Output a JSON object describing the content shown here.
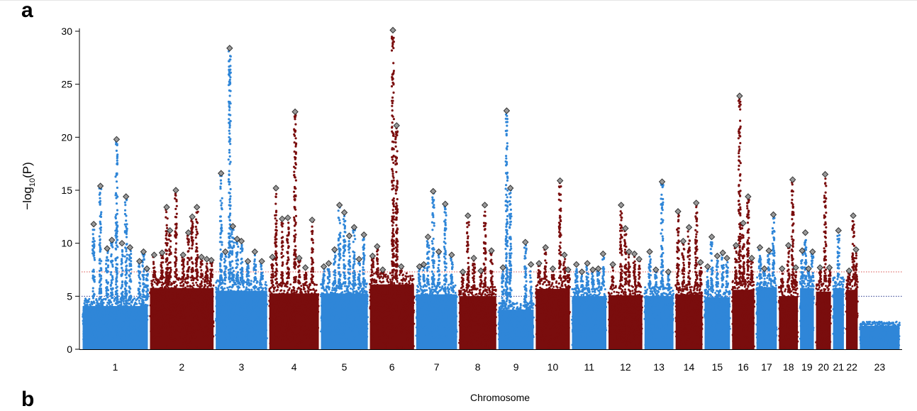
{
  "panels": {
    "a": "a",
    "b": "b"
  },
  "chart_data": {
    "type": "scatter",
    "title": "",
    "xlabel": "Chromosome",
    "ylabel_prefix": "−log",
    "ylabel_sub": "10",
    "ylabel_suffix": "(P)",
    "ylim": [
      0,
      30
    ],
    "yticks": [
      0,
      5,
      10,
      15,
      20,
      25,
      30
    ],
    "thresholds": [
      {
        "value": 7.3,
        "color": "#d9534f",
        "style": "dotted"
      },
      {
        "value": 5.0,
        "color": "#2b3a8f",
        "style": "dotted"
      }
    ],
    "colors": {
      "odd": "#2f86d8",
      "even": "#7a0d0d",
      "lead_marker": "#9a9a9a"
    },
    "chromosomes": [
      {
        "label": "1",
        "length": 249,
        "color": "#2f86d8",
        "base": 4.8,
        "peaks": [
          [
            0.18,
            11.8
          ],
          [
            0.28,
            15.4
          ],
          [
            0.38,
            9.5
          ],
          [
            0.45,
            10.3
          ],
          [
            0.52,
            19.8
          ],
          [
            0.6,
            10
          ],
          [
            0.66,
            14.4
          ],
          [
            0.72,
            9.6
          ],
          [
            0.86,
            8.3
          ],
          [
            0.92,
            9.2
          ],
          [
            0.97,
            7.6
          ]
        ]
      },
      {
        "label": "2",
        "length": 243,
        "color": "#7a0d0d",
        "base": 6.8,
        "peaks": [
          [
            0.08,
            8.9
          ],
          [
            0.2,
            9.1
          ],
          [
            0.27,
            13.4
          ],
          [
            0.32,
            11.2
          ],
          [
            0.41,
            15.0
          ],
          [
            0.52,
            8.9
          ],
          [
            0.6,
            11.0
          ],
          [
            0.66,
            12.5
          ],
          [
            0.73,
            13.4
          ],
          [
            0.8,
            8.7
          ],
          [
            0.88,
            8.5
          ],
          [
            0.95,
            8.4
          ]
        ]
      },
      {
        "label": "3",
        "length": 198,
        "color": "#2f86d8",
        "base": 6.5,
        "peaks": [
          [
            0.12,
            16.6
          ],
          [
            0.2,
            9.2
          ],
          [
            0.28,
            28.4
          ],
          [
            0.34,
            11.6
          ],
          [
            0.42,
            10.4
          ],
          [
            0.5,
            10.2
          ],
          [
            0.62,
            8.3
          ],
          [
            0.75,
            9.2
          ],
          [
            0.88,
            8.3
          ]
        ]
      },
      {
        "label": "4",
        "length": 191,
        "color": "#7a0d0d",
        "base": 6.2,
        "peaks": [
          [
            0.08,
            8.7
          ],
          [
            0.15,
            15.2
          ],
          [
            0.27,
            12.3
          ],
          [
            0.38,
            12.4
          ],
          [
            0.52,
            22.4
          ],
          [
            0.6,
            8.6
          ],
          [
            0.72,
            7.7
          ],
          [
            0.85,
            12.2
          ]
        ]
      },
      {
        "label": "5",
        "length": 181,
        "color": "#2f86d8",
        "base": 6.2,
        "peaks": [
          [
            0.08,
            7.8
          ],
          [
            0.18,
            8.1
          ],
          [
            0.3,
            9.4
          ],
          [
            0.4,
            13.6
          ],
          [
            0.5,
            12.9
          ],
          [
            0.6,
            10.7
          ],
          [
            0.7,
            11.5
          ],
          [
            0.8,
            8.5
          ],
          [
            0.9,
            10.8
          ]
        ]
      },
      {
        "label": "6",
        "length": 171,
        "color": "#7a0d0d",
        "base": 7.2,
        "peaks": [
          [
            0.08,
            8.8
          ],
          [
            0.18,
            9.7
          ],
          [
            0.3,
            7.5
          ],
          [
            0.52,
            30.1
          ],
          [
            0.6,
            21.1
          ],
          [
            0.7,
            7.8
          ]
        ]
      },
      {
        "label": "7",
        "length": 159,
        "color": "#2f86d8",
        "base": 6.1,
        "peaks": [
          [
            0.1,
            7.8
          ],
          [
            0.2,
            8.0
          ],
          [
            0.3,
            10.6
          ],
          [
            0.42,
            14.9
          ],
          [
            0.55,
            9.2
          ],
          [
            0.7,
            13.7
          ],
          [
            0.85,
            8.9
          ]
        ]
      },
      {
        "label": "8",
        "length": 145,
        "color": "#7a0d0d",
        "base": 5.9,
        "peaks": [
          [
            0.12,
            7.3
          ],
          [
            0.25,
            12.6
          ],
          [
            0.4,
            8.6
          ],
          [
            0.58,
            7.4
          ],
          [
            0.68,
            13.6
          ],
          [
            0.85,
            9.3
          ]
        ]
      },
      {
        "label": "9",
        "length": 138,
        "color": "#2f86d8",
        "base": 4.4,
        "peaks": [
          [
            0.15,
            7.7
          ],
          [
            0.25,
            22.5
          ],
          [
            0.35,
            15.2
          ],
          [
            0.75,
            10.1
          ],
          [
            0.9,
            8.0
          ]
        ]
      },
      {
        "label": "10",
        "length": 134,
        "color": "#7a0d0d",
        "base": 6.7,
        "peaks": [
          [
            0.12,
            8.1
          ],
          [
            0.3,
            9.6
          ],
          [
            0.5,
            7.6
          ],
          [
            0.7,
            15.9
          ],
          [
            0.82,
            8.9
          ],
          [
            0.92,
            7.5
          ]
        ]
      },
      {
        "label": "11",
        "length": 135,
        "color": "#2f86d8",
        "base": 5.9,
        "peaks": [
          [
            0.15,
            8.0
          ],
          [
            0.3,
            7.3
          ],
          [
            0.45,
            8.1
          ],
          [
            0.6,
            7.5
          ],
          [
            0.75,
            7.6
          ],
          [
            0.88,
            9.0
          ]
        ]
      },
      {
        "label": "12",
        "length": 133,
        "color": "#7a0d0d",
        "base": 6.0,
        "peaks": [
          [
            0.15,
            8.0
          ],
          [
            0.38,
            13.6
          ],
          [
            0.5,
            11.4
          ],
          [
            0.6,
            9.2
          ],
          [
            0.75,
            9.0
          ],
          [
            0.88,
            8.5
          ]
        ]
      },
      {
        "label": "13",
        "length": 115,
        "color": "#2f86d8",
        "base": 5.9,
        "peaks": [
          [
            0.2,
            9.2
          ],
          [
            0.4,
            7.5
          ],
          [
            0.6,
            15.8
          ],
          [
            0.8,
            7.3
          ]
        ]
      },
      {
        "label": "14",
        "length": 107,
        "color": "#7a0d0d",
        "base": 6.1,
        "peaks": [
          [
            0.12,
            13.0
          ],
          [
            0.3,
            10.2
          ],
          [
            0.5,
            11.5
          ],
          [
            0.75,
            13.8
          ],
          [
            0.9,
            8.2
          ]
        ]
      },
      {
        "label": "15",
        "length": 102,
        "color": "#2f86d8",
        "base": 5.8,
        "peaks": [
          [
            0.15,
            7.8
          ],
          [
            0.3,
            10.6
          ],
          [
            0.5,
            8.8
          ],
          [
            0.7,
            9.1
          ],
          [
            0.85,
            8.6
          ]
        ]
      },
      {
        "label": "16",
        "length": 90,
        "color": "#7a0d0d",
        "base": 6.6,
        "peaks": [
          [
            0.2,
            9.8
          ],
          [
            0.35,
            23.9
          ],
          [
            0.5,
            11.9
          ],
          [
            0.7,
            14.4
          ],
          [
            0.85,
            8.6
          ]
        ]
      },
      {
        "label": "17",
        "length": 83,
        "color": "#2f86d8",
        "base": 6.9,
        "peaks": [
          [
            0.2,
            9.6
          ],
          [
            0.4,
            7.6
          ],
          [
            0.6,
            9.3
          ],
          [
            0.8,
            12.7
          ]
        ]
      },
      {
        "label": "18",
        "length": 78,
        "color": "#7a0d0d",
        "base": 5.9,
        "peaks": [
          [
            0.2,
            7.6
          ],
          [
            0.5,
            9.8
          ],
          [
            0.7,
            16.0
          ],
          [
            0.85,
            7.7
          ]
        ]
      },
      {
        "label": "19",
        "length": 59,
        "color": "#2f86d8",
        "base": 6.8,
        "peaks": [
          [
            0.2,
            9.3
          ],
          [
            0.4,
            11.0
          ],
          [
            0.6,
            7.6
          ],
          [
            0.85,
            9.2
          ]
        ]
      },
      {
        "label": "20",
        "length": 63,
        "color": "#7a0d0d",
        "base": 6.4,
        "peaks": [
          [
            0.3,
            7.7
          ],
          [
            0.6,
            16.5
          ],
          [
            0.85,
            7.7
          ]
        ]
      },
      {
        "label": "21",
        "length": 48,
        "color": "#2f86d8",
        "base": 6.8,
        "peaks": [
          [
            0.5,
            11.2
          ]
        ]
      },
      {
        "label": "22",
        "length": 51,
        "color": "#7a0d0d",
        "base": 6.6,
        "peaks": [
          [
            0.3,
            7.4
          ],
          [
            0.6,
            12.6
          ],
          [
            0.8,
            9.4
          ]
        ]
      },
      {
        "label": "23",
        "length": 155,
        "color": "#2f86d8",
        "base": 2.6,
        "peaks": []
      }
    ]
  }
}
